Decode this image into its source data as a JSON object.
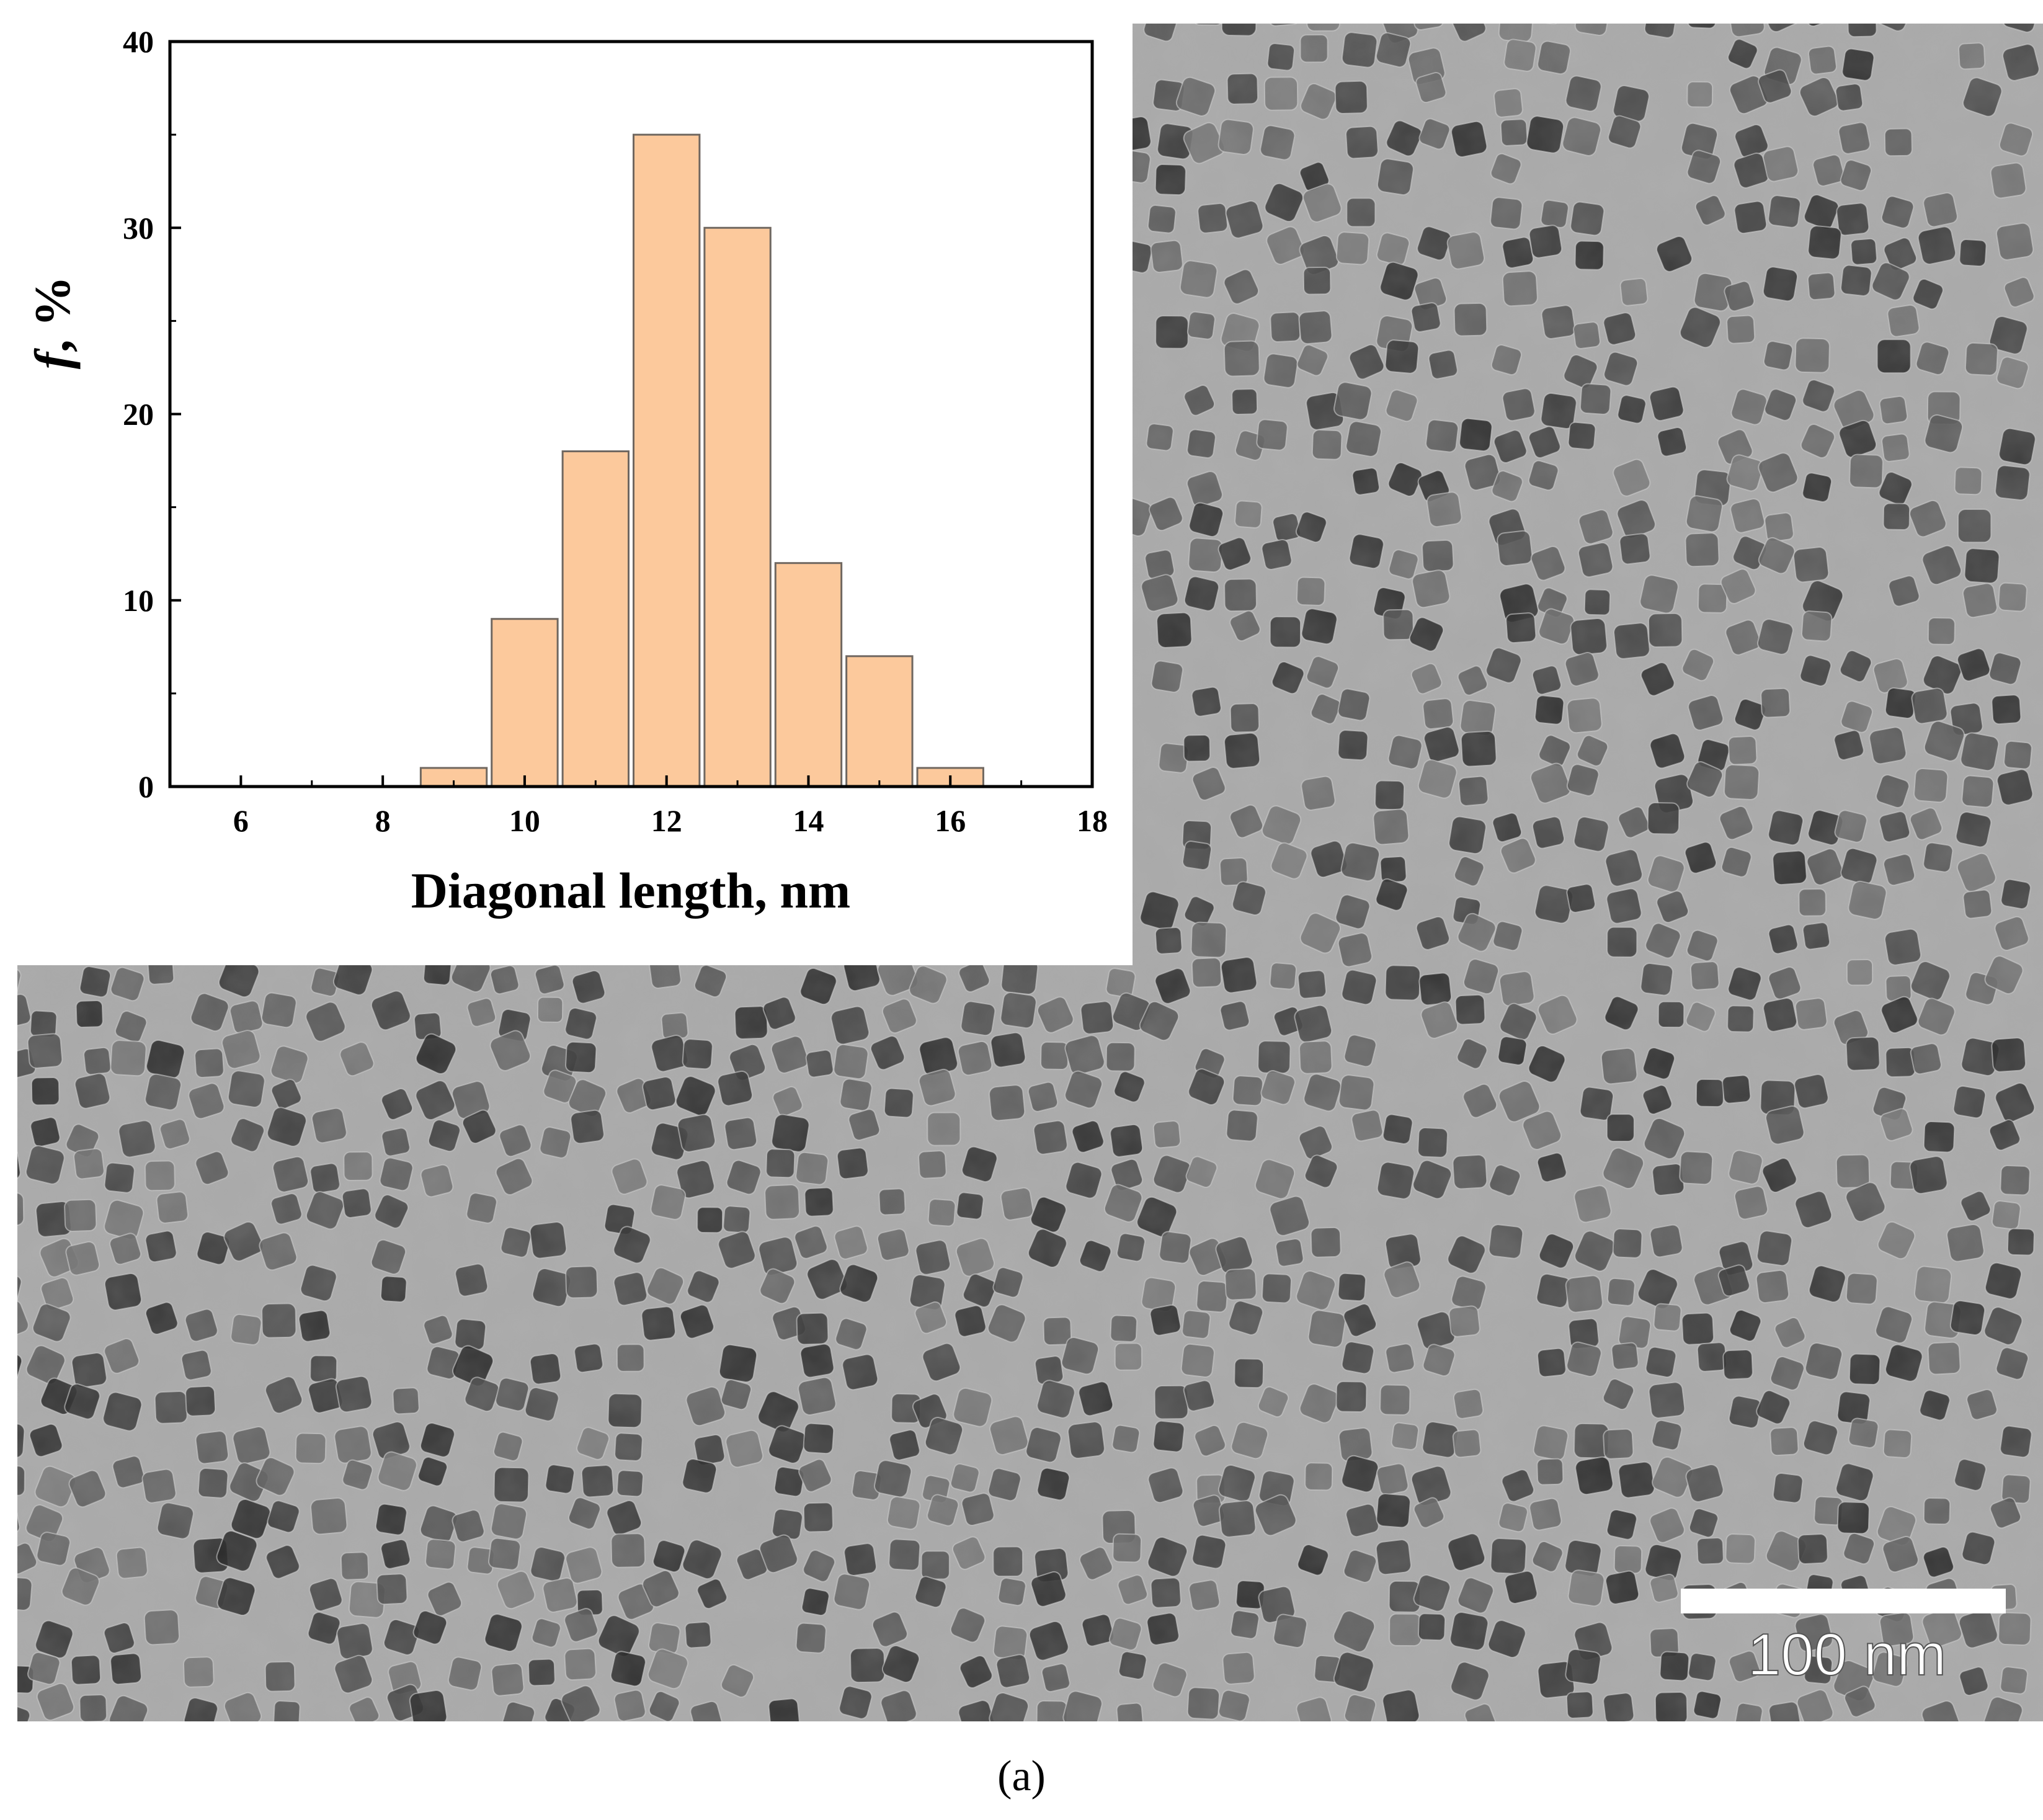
{
  "figure": {
    "panel_label": "(a)",
    "scale_bar_label": "100 nm"
  },
  "colors": {
    "bar_fill": "#FCC99C",
    "bar_stroke": "#6F6760",
    "micrograph_background": "#a9a9a9",
    "particle": "#4a4a4a"
  },
  "chart_data": {
    "type": "bar",
    "xlabel": "Diagonal length, nm",
    "ylabel_symbol": "f",
    "ylabel_unit": ", %",
    "x_ticks": [
      "6",
      "8",
      "10",
      "12",
      "14",
      "16",
      "18"
    ],
    "y_ticks": [
      "0",
      "10",
      "20",
      "30",
      "40"
    ],
    "xlim": [
      5,
      18
    ],
    "ylim": [
      0,
      40
    ],
    "bin_width": 1,
    "bins": [
      {
        "x": 9,
        "value": 1
      },
      {
        "x": 10,
        "value": 9
      },
      {
        "x": 11,
        "value": 18
      },
      {
        "x": 12,
        "value": 35
      },
      {
        "x": 13,
        "value": 30
      },
      {
        "x": 14,
        "value": 12
      },
      {
        "x": 15,
        "value": 7
      },
      {
        "x": 16,
        "value": 1
      }
    ],
    "grid": false
  }
}
